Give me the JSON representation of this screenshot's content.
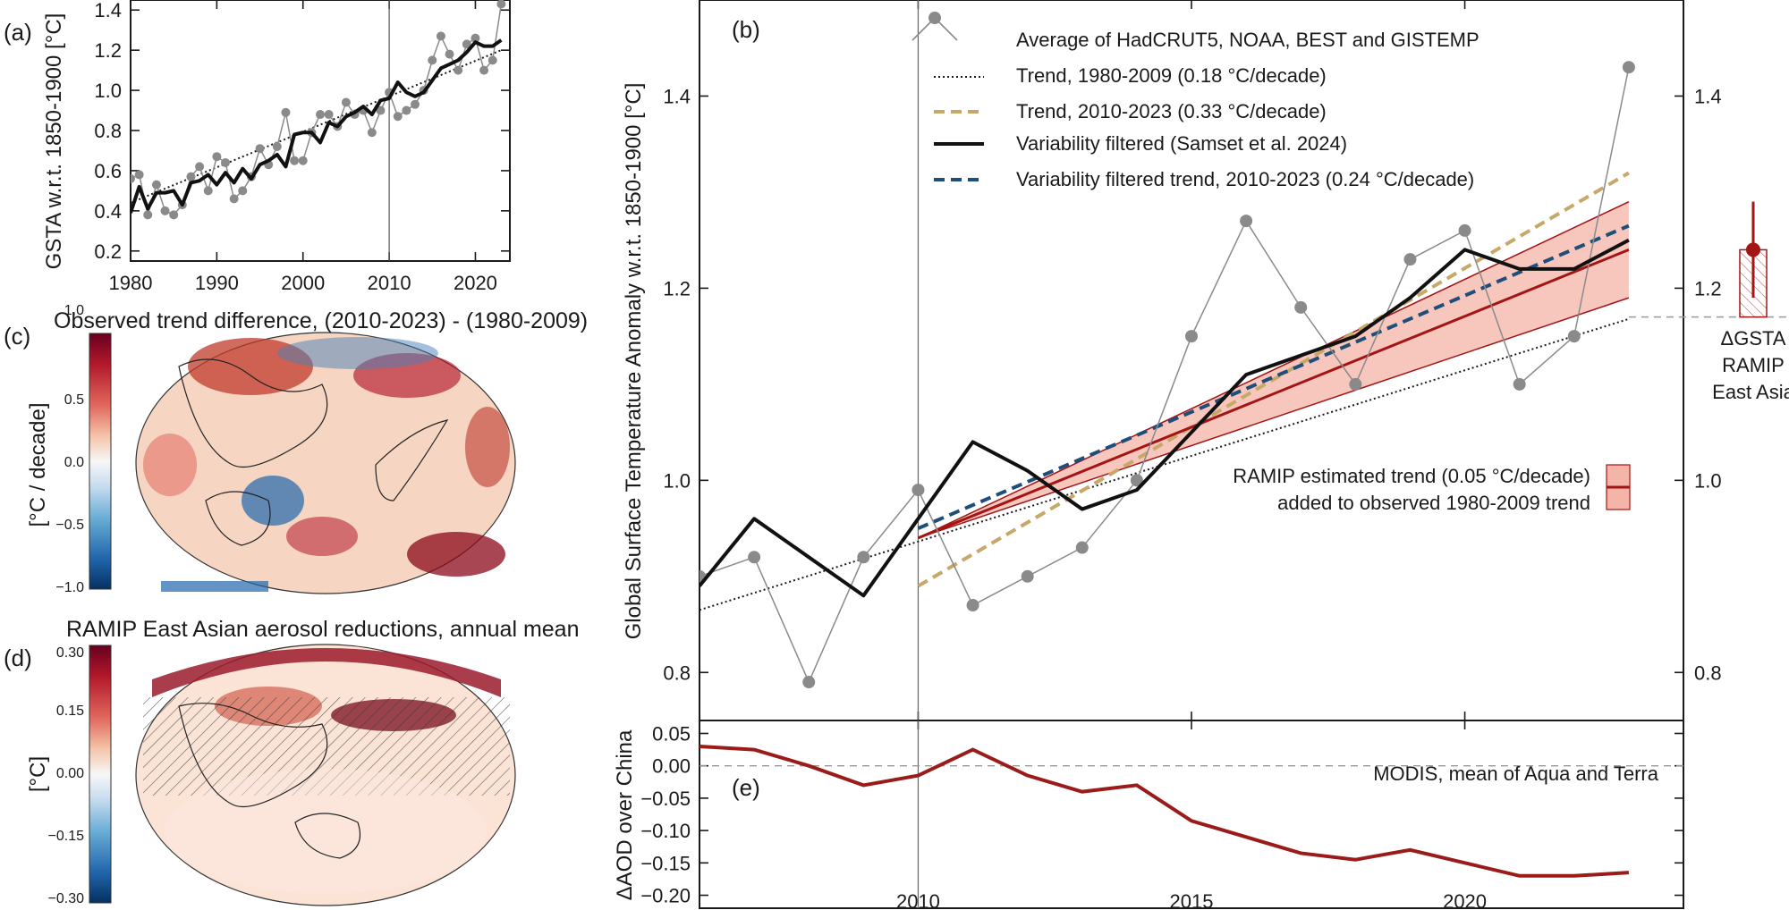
{
  "panel_labels": {
    "a": "(a)",
    "b": "(b)",
    "c": "(c)",
    "d": "(d)",
    "e": "(e)"
  },
  "colors": {
    "obs": "#8a8a8a",
    "trend_early": "#1a1a1a",
    "trend_late": "#c8a868",
    "filtered": "#111111",
    "filtered_trend": "#1f4e79",
    "ramip": "#a31515",
    "ramip_band": "#f4b4a8",
    "aod": "#9b1b1b"
  },
  "chart_data": [
    {
      "id": "a",
      "type": "line",
      "ylabel": "GSTA w.r.t. 1850-1900 [°C]",
      "xlim": [
        1980,
        2024
      ],
      "ylim": [
        0.15,
        1.45
      ],
      "xticks": [
        1980,
        1990,
        2000,
        2010,
        2020
      ],
      "yticks": [
        0.2,
        0.4,
        0.6,
        0.8,
        1.0,
        1.2,
        1.4
      ],
      "vline_x": 2010,
      "series": [
        {
          "role": "obs",
          "x": [
            1980,
            1981,
            1982,
            1983,
            1984,
            1985,
            1986,
            1987,
            1988,
            1989,
            1990,
            1991,
            1992,
            1993,
            1994,
            1995,
            1996,
            1997,
            1998,
            1999,
            2000,
            2001,
            2002,
            2003,
            2004,
            2005,
            2006,
            2007,
            2008,
            2009,
            2010,
            2011,
            2012,
            2013,
            2014,
            2015,
            2016,
            2017,
            2018,
            2019,
            2020,
            2021,
            2022,
            2023
          ],
          "y": [
            0.56,
            0.58,
            0.38,
            0.53,
            0.4,
            0.38,
            0.43,
            0.57,
            0.62,
            0.5,
            0.67,
            0.64,
            0.46,
            0.5,
            0.57,
            0.71,
            0.63,
            0.72,
            0.89,
            0.65,
            0.65,
            0.79,
            0.88,
            0.88,
            0.82,
            0.94,
            0.88,
            0.9,
            0.79,
            0.9,
            0.99,
            0.87,
            0.9,
            0.93,
            1.0,
            1.15,
            1.27,
            1.18,
            1.1,
            1.23,
            1.26,
            1.1,
            1.15,
            1.43
          ]
        },
        {
          "role": "filtered",
          "x": [
            1980,
            1981,
            1982,
            1983,
            1984,
            1985,
            1986,
            1987,
            1988,
            1989,
            1990,
            1991,
            1992,
            1993,
            1994,
            1995,
            1996,
            1997,
            1998,
            1999,
            2000,
            2001,
            2002,
            2003,
            2004,
            2005,
            2006,
            2007,
            2008,
            2009,
            2010,
            2011,
            2012,
            2013,
            2014,
            2015,
            2016,
            2017,
            2018,
            2019,
            2020,
            2021,
            2022,
            2023
          ],
          "y": [
            0.39,
            0.52,
            0.41,
            0.49,
            0.49,
            0.5,
            0.43,
            0.54,
            0.55,
            0.58,
            0.53,
            0.59,
            0.54,
            0.61,
            0.56,
            0.63,
            0.65,
            0.68,
            0.62,
            0.78,
            0.79,
            0.79,
            0.74,
            0.84,
            0.82,
            0.87,
            0.89,
            0.92,
            0.88,
            0.95,
            0.96,
            1.04,
            0.99,
            0.97,
            0.99,
            1.05,
            1.11,
            1.13,
            1.15,
            1.19,
            1.24,
            1.22,
            1.22,
            1.25
          ]
        },
        {
          "role": "trend_early",
          "x": [
            1980,
            2023
          ],
          "y": [
            0.44,
            1.2
          ]
        }
      ]
    },
    {
      "id": "b",
      "type": "line",
      "ylabel": "Global Surface Temperature Anomaly w.r.t. 1850-1900 [°C]",
      "xlim": [
        2006,
        2024
      ],
      "ylim": [
        0.75,
        1.5
      ],
      "yticks": [
        0.8,
        1.0,
        1.2,
        1.4
      ],
      "vline_x": 2010,
      "hline_y": 1.17,
      "legend": [
        {
          "role": "obs",
          "label": "Average of HadCRUT5, NOAA, BEST and GISTEMP"
        },
        {
          "role": "trend_early",
          "label": "Trend, 1980-2009 (0.18 °C/decade)"
        },
        {
          "role": "trend_late",
          "label": "Trend, 2010-2023 (0.33 °C/decade)"
        },
        {
          "role": "filtered",
          "label": "Variability filtered (Samset et al. 2024)"
        },
        {
          "role": "filtered_trend",
          "label": "Variability filtered trend, 2010-2023 (0.24 °C/decade)"
        }
      ],
      "ramip_label_1": "RAMIP estimated trend (0.05 °C/decade)",
      "ramip_label_2": "added to observed 1980-2009 trend",
      "series": [
        {
          "role": "obs",
          "x": [
            2006,
            2007,
            2008,
            2009,
            2010,
            2011,
            2012,
            2013,
            2014,
            2015,
            2016,
            2017,
            2018,
            2019,
            2020,
            2021,
            2022,
            2023
          ],
          "y": [
            0.9,
            0.92,
            0.79,
            0.92,
            0.99,
            0.87,
            0.9,
            0.93,
            1.0,
            1.15,
            1.27,
            1.18,
            1.1,
            1.23,
            1.26,
            1.1,
            1.15,
            1.43
          ]
        },
        {
          "role": "filtered",
          "x": [
            2006,
            2007,
            2008,
            2009,
            2010,
            2011,
            2012,
            2013,
            2014,
            2015,
            2016,
            2017,
            2018,
            2019,
            2020,
            2021,
            2022,
            2023
          ],
          "y": [
            0.89,
            0.96,
            0.92,
            0.88,
            0.96,
            1.04,
            1.01,
            0.97,
            0.99,
            1.05,
            1.11,
            1.13,
            1.15,
            1.19,
            1.24,
            1.22,
            1.22,
            1.25
          ]
        },
        {
          "role": "trend_early",
          "x": [
            2006,
            2023
          ],
          "y": [
            0.865,
            1.168
          ]
        },
        {
          "role": "trend_late",
          "x": [
            2010,
            2023
          ],
          "y": [
            0.89,
            1.32
          ]
        },
        {
          "role": "filtered_trend",
          "x": [
            2010,
            2023
          ],
          "y": [
            0.95,
            1.265
          ]
        },
        {
          "role": "ramip",
          "x": [
            2010,
            2023
          ],
          "y": [
            0.94,
            1.24
          ]
        },
        {
          "role": "ramip_band",
          "x": [
            2010,
            2023
          ],
          "y_low": [
            0.94,
            1.19
          ],
          "y_high": [
            0.94,
            1.29
          ]
        }
      ],
      "inset": {
        "label_1": "ΔGSTA",
        "label_2": "RAMIP",
        "label_3": "East Asia",
        "value": 1.24,
        "range": [
          1.19,
          1.29
        ]
      }
    },
    {
      "id": "e",
      "type": "line",
      "ylabel": "ΔAOD over China",
      "annotation": "MODIS, mean of Aqua and Terra",
      "xlim": [
        2006,
        2024
      ],
      "ylim": [
        -0.22,
        0.07
      ],
      "xticks": [
        2010,
        2015,
        2020
      ],
      "yticks": [
        0.05,
        0.0,
        -0.05,
        -0.1,
        -0.15,
        -0.2
      ],
      "ytick_labels": [
        "0.05",
        "0.00",
        "−0.05",
        "−0.10",
        "−0.15",
        "−0.20"
      ],
      "vline_x": 2010,
      "hline_y": 0.0,
      "series": [
        {
          "role": "aod",
          "x": [
            2006,
            2007,
            2008,
            2009,
            2010,
            2011,
            2012,
            2013,
            2014,
            2015,
            2016,
            2017,
            2018,
            2019,
            2020,
            2021,
            2022,
            2023
          ],
          "y": [
            0.03,
            0.025,
            0.0,
            -0.03,
            -0.015,
            0.025,
            -0.015,
            -0.04,
            -0.03,
            -0.085,
            -0.11,
            -0.135,
            -0.145,
            -0.13,
            -0.15,
            -0.17,
            -0.17,
            -0.165
          ]
        }
      ]
    },
    {
      "id": "c",
      "type": "heatmap",
      "title": "Observed trend difference, (2010-2023) - (1980-2009)",
      "colorbar_label": "[°C / decade]",
      "colorbar_ticks": [
        "1.0",
        "0.5",
        "0.0",
        "−0.5",
        "−1.0"
      ]
    },
    {
      "id": "d",
      "type": "heatmap",
      "title": "RAMIP East Asian aerosol reductions, annual mean",
      "colorbar_label": "[°C]",
      "colorbar_ticks": [
        "0.30",
        "0.15",
        "0.00",
        "−0.15",
        "−0.30"
      ]
    }
  ]
}
